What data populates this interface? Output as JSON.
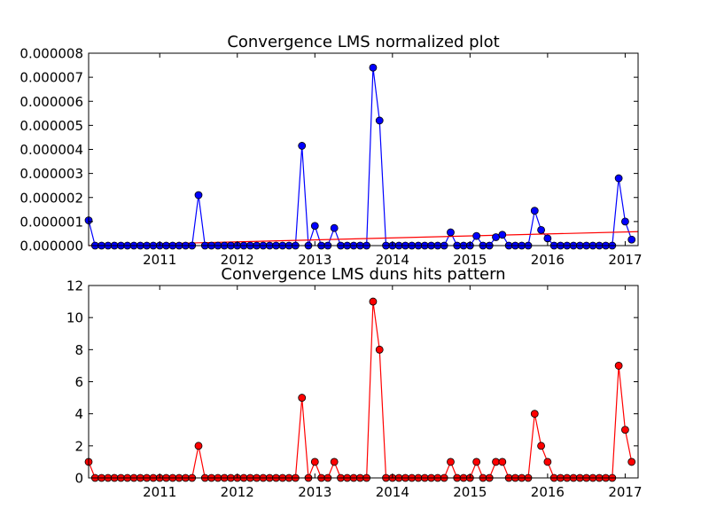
{
  "chart_data": [
    {
      "type": "line",
      "title": "Convergence LMS normalized plot",
      "xlabel": "",
      "ylabel": "",
      "xlim": [
        "2010-02",
        "2017-03"
      ],
      "ylim": [
        0,
        8e-06
      ],
      "grid": false,
      "x_tick_labels": [
        "2011",
        "2012",
        "2013",
        "2014",
        "2015",
        "2016",
        "2017"
      ],
      "x_tick_dates": [
        "2011-01",
        "2012-01",
        "2013-01",
        "2014-01",
        "2015-01",
        "2016-01",
        "2017-01"
      ],
      "y_tick_values": [
        0,
        1e-06,
        2e-06,
        3e-06,
        4e-06,
        5e-06,
        6e-06,
        7e-06,
        8e-06
      ],
      "y_tick_labels": [
        "0.000000",
        "0.000001",
        "0.000002",
        "0.000003",
        "0.000004",
        "0.000005",
        "0.000006",
        "0.000007",
        "0.000008"
      ],
      "series": [
        {
          "color": "#0000ff",
          "marker_color": "#0000ff",
          "points": [
            [
              "2010-02",
              1.05e-06
            ],
            [
              "2010-03",
              0
            ],
            [
              "2010-04",
              0
            ],
            [
              "2010-05",
              0
            ],
            [
              "2010-06",
              0
            ],
            [
              "2010-07",
              0
            ],
            [
              "2010-08",
              0
            ],
            [
              "2010-09",
              0
            ],
            [
              "2010-10",
              0
            ],
            [
              "2010-11",
              0
            ],
            [
              "2010-12",
              0
            ],
            [
              "2011-01",
              0
            ],
            [
              "2011-02",
              0
            ],
            [
              "2011-03",
              0
            ],
            [
              "2011-04",
              0
            ],
            [
              "2011-05",
              0
            ],
            [
              "2011-06",
              0
            ],
            [
              "2011-07",
              2.1e-06
            ],
            [
              "2011-08",
              0
            ],
            [
              "2011-09",
              0
            ],
            [
              "2011-10",
              0
            ],
            [
              "2011-11",
              0
            ],
            [
              "2011-12",
              0
            ],
            [
              "2012-01",
              0
            ],
            [
              "2012-02",
              0
            ],
            [
              "2012-03",
              0
            ],
            [
              "2012-04",
              0
            ],
            [
              "2012-05",
              0
            ],
            [
              "2012-06",
              0
            ],
            [
              "2012-07",
              0
            ],
            [
              "2012-08",
              0
            ],
            [
              "2012-09",
              0
            ],
            [
              "2012-10",
              0
            ],
            [
              "2012-11",
              4.15e-06
            ],
            [
              "2012-12",
              0
            ],
            [
              "2013-01",
              8.2e-07
            ],
            [
              "2013-02",
              0
            ],
            [
              "2013-03",
              0
            ],
            [
              "2013-04",
              7.3e-07
            ],
            [
              "2013-05",
              0
            ],
            [
              "2013-06",
              0
            ],
            [
              "2013-07",
              0
            ],
            [
              "2013-08",
              0
            ],
            [
              "2013-09",
              0
            ],
            [
              "2013-10",
              7.4e-06
            ],
            [
              "2013-11",
              5.2e-06
            ],
            [
              "2013-12",
              0
            ],
            [
              "2014-01",
              0
            ],
            [
              "2014-02",
              0
            ],
            [
              "2014-03",
              0
            ],
            [
              "2014-04",
              0
            ],
            [
              "2014-05",
              0
            ],
            [
              "2014-06",
              0
            ],
            [
              "2014-07",
              0
            ],
            [
              "2014-08",
              0
            ],
            [
              "2014-09",
              0
            ],
            [
              "2014-10",
              5.5e-07
            ],
            [
              "2014-11",
              0
            ],
            [
              "2014-12",
              0
            ],
            [
              "2015-01",
              0
            ],
            [
              "2015-02",
              4e-07
            ],
            [
              "2015-03",
              0
            ],
            [
              "2015-04",
              0
            ],
            [
              "2015-05",
              3.5e-07
            ],
            [
              "2015-06",
              4.5e-07
            ],
            [
              "2015-07",
              0
            ],
            [
              "2015-08",
              0
            ],
            [
              "2015-09",
              0
            ],
            [
              "2015-10",
              0
            ],
            [
              "2015-11",
              1.45e-06
            ],
            [
              "2015-12",
              6.5e-07
            ],
            [
              "2016-01",
              3e-07
            ],
            [
              "2016-02",
              0
            ],
            [
              "2016-03",
              0
            ],
            [
              "2016-04",
              0
            ],
            [
              "2016-05",
              0
            ],
            [
              "2016-06",
              0
            ],
            [
              "2016-07",
              0
            ],
            [
              "2016-08",
              0
            ],
            [
              "2016-09",
              0
            ],
            [
              "2016-10",
              0
            ],
            [
              "2016-11",
              0
            ],
            [
              "2016-12",
              2.8e-06
            ],
            [
              "2017-01",
              1e-06
            ],
            [
              "2017-02",
              2.5e-07
            ]
          ]
        },
        {
          "color": "#ff0000",
          "marker_color": null,
          "points": [
            [
              "2010-02",
              0
            ],
            [
              "2017-03",
              5.8e-07
            ]
          ]
        }
      ]
    },
    {
      "type": "line",
      "title": "Convergence LMS duns hits pattern",
      "xlabel": "",
      "ylabel": "",
      "xlim": [
        "2010-02",
        "2017-03"
      ],
      "ylim": [
        0,
        12
      ],
      "grid": false,
      "x_tick_labels": [
        "2011",
        "2012",
        "2013",
        "2014",
        "2015",
        "2016",
        "2017"
      ],
      "x_tick_dates": [
        "2011-01",
        "2012-01",
        "2013-01",
        "2014-01",
        "2015-01",
        "2016-01",
        "2017-01"
      ],
      "y_tick_values": [
        0,
        2,
        4,
        6,
        8,
        10,
        12
      ],
      "y_tick_labels": [
        "0",
        "2",
        "4",
        "6",
        "8",
        "10",
        "12"
      ],
      "series": [
        {
          "color": "#ff0000",
          "marker_color": "#ff0000",
          "points": [
            [
              "2010-02",
              1
            ],
            [
              "2010-03",
              0
            ],
            [
              "2010-04",
              0
            ],
            [
              "2010-05",
              0
            ],
            [
              "2010-06",
              0
            ],
            [
              "2010-07",
              0
            ],
            [
              "2010-08",
              0
            ],
            [
              "2010-09",
              0
            ],
            [
              "2010-10",
              0
            ],
            [
              "2010-11",
              0
            ],
            [
              "2010-12",
              0
            ],
            [
              "2011-01",
              0
            ],
            [
              "2011-02",
              0
            ],
            [
              "2011-03",
              0
            ],
            [
              "2011-04",
              0
            ],
            [
              "2011-05",
              0
            ],
            [
              "2011-06",
              0
            ],
            [
              "2011-07",
              2
            ],
            [
              "2011-08",
              0
            ],
            [
              "2011-09",
              0
            ],
            [
              "2011-10",
              0
            ],
            [
              "2011-11",
              0
            ],
            [
              "2011-12",
              0
            ],
            [
              "2012-01",
              0
            ],
            [
              "2012-02",
              0
            ],
            [
              "2012-03",
              0
            ],
            [
              "2012-04",
              0
            ],
            [
              "2012-05",
              0
            ],
            [
              "2012-06",
              0
            ],
            [
              "2012-07",
              0
            ],
            [
              "2012-08",
              0
            ],
            [
              "2012-09",
              0
            ],
            [
              "2012-10",
              0
            ],
            [
              "2012-11",
              5
            ],
            [
              "2012-12",
              0
            ],
            [
              "2013-01",
              1
            ],
            [
              "2013-02",
              0
            ],
            [
              "2013-03",
              0
            ],
            [
              "2013-04",
              1
            ],
            [
              "2013-05",
              0
            ],
            [
              "2013-06",
              0
            ],
            [
              "2013-07",
              0
            ],
            [
              "2013-08",
              0
            ],
            [
              "2013-09",
              0
            ],
            [
              "2013-10",
              11
            ],
            [
              "2013-11",
              8
            ],
            [
              "2013-12",
              0
            ],
            [
              "2014-01",
              0
            ],
            [
              "2014-02",
              0
            ],
            [
              "2014-03",
              0
            ],
            [
              "2014-04",
              0
            ],
            [
              "2014-05",
              0
            ],
            [
              "2014-06",
              0
            ],
            [
              "2014-07",
              0
            ],
            [
              "2014-08",
              0
            ],
            [
              "2014-09",
              0
            ],
            [
              "2014-10",
              1
            ],
            [
              "2014-11",
              0
            ],
            [
              "2014-12",
              0
            ],
            [
              "2015-01",
              0
            ],
            [
              "2015-02",
              1
            ],
            [
              "2015-03",
              0
            ],
            [
              "2015-04",
              0
            ],
            [
              "2015-05",
              1
            ],
            [
              "2015-06",
              1
            ],
            [
              "2015-07",
              0
            ],
            [
              "2015-08",
              0
            ],
            [
              "2015-09",
              0
            ],
            [
              "2015-10",
              0
            ],
            [
              "2015-11",
              4
            ],
            [
              "2015-12",
              2
            ],
            [
              "2016-01",
              1
            ],
            [
              "2016-02",
              0
            ],
            [
              "2016-03",
              0
            ],
            [
              "2016-04",
              0
            ],
            [
              "2016-05",
              0
            ],
            [
              "2016-06",
              0
            ],
            [
              "2016-07",
              0
            ],
            [
              "2016-08",
              0
            ],
            [
              "2016-09",
              0
            ],
            [
              "2016-10",
              0
            ],
            [
              "2016-11",
              0
            ],
            [
              "2016-12",
              7
            ],
            [
              "2017-01",
              3
            ],
            [
              "2017-02",
              1
            ]
          ]
        }
      ]
    }
  ]
}
